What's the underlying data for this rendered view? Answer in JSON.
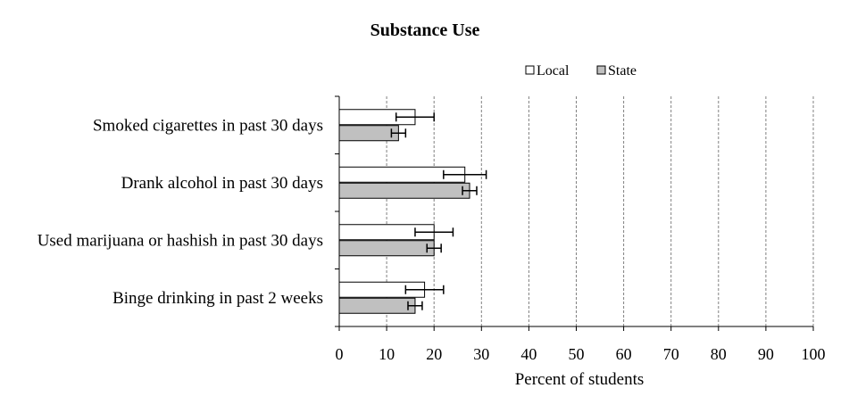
{
  "chart_data": {
    "type": "bar",
    "orientation": "horizontal",
    "title": "Substance Use",
    "xlabel": "Percent of students",
    "ylabel": "",
    "xlim": [
      0,
      100
    ],
    "ticks": [
      0,
      10,
      20,
      30,
      40,
      50,
      60,
      70,
      80,
      90,
      100
    ],
    "grid": true,
    "legend_position": "top-right",
    "categories": [
      "Smoked cigarettes in past 30 days",
      "Drank alcohol in past 30 days",
      "Used marijuana or hashish in past 30 days",
      "Binge drinking in past 2 weeks"
    ],
    "series": [
      {
        "name": "Local",
        "color": "#ffffff",
        "values": [
          16,
          26.5,
          20,
          18
        ],
        "error_low": [
          12,
          22,
          16,
          14
        ],
        "error_high": [
          20,
          31,
          24,
          22
        ]
      },
      {
        "name": "State",
        "color": "#c0c0c0",
        "values": [
          12.5,
          27.5,
          20,
          16
        ],
        "error_low": [
          11,
          26,
          18.5,
          14.5
        ],
        "error_high": [
          14,
          29,
          21.5,
          17.5
        ]
      }
    ]
  }
}
